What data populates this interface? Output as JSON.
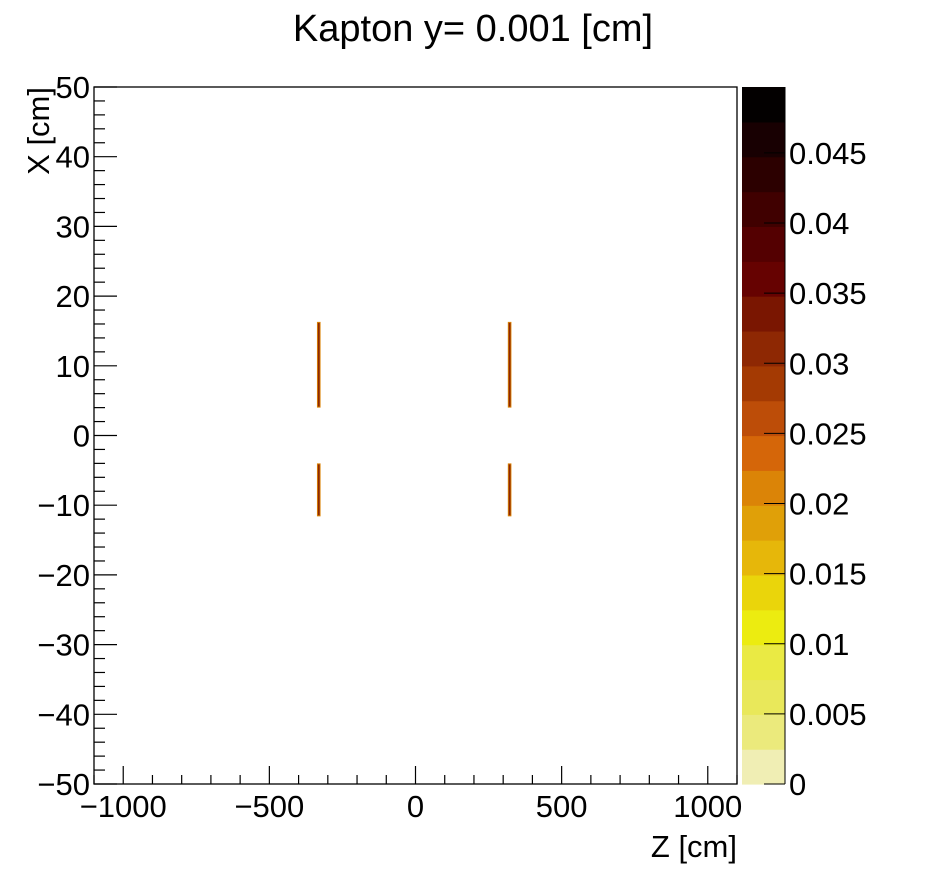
{
  "chart_data": {
    "type": "heatmap",
    "title": "Kapton y=  0.001 [cm]",
    "xlabel": "Z [cm]",
    "ylabel": "X [cm]",
    "xlim": [
      -1100,
      1100
    ],
    "ylim": [
      -50,
      50
    ],
    "x_ticks": [
      -1000,
      -500,
      0,
      500,
      1000
    ],
    "x_tick_labels": [
      "−1000",
      "−500",
      "0",
      "500",
      "1000"
    ],
    "y_ticks": [
      -50,
      -40,
      -30,
      -20,
      -10,
      0,
      10,
      20,
      30,
      40,
      50
    ],
    "y_tick_labels": [
      "−50",
      "−40",
      "−30",
      "−20",
      "−10",
      "0",
      "10",
      "20",
      "30",
      "40",
      "50"
    ],
    "grid": false,
    "colorbar": {
      "min": 0,
      "max": 0.0497,
      "ticks": [
        0,
        0.005,
        0.01,
        0.015,
        0.02,
        0.025,
        0.03,
        0.035,
        0.04,
        0.045
      ],
      "tick_labels": [
        "0",
        "0.005",
        "0.01",
        "0.015",
        "0.02",
        "0.025",
        "0.03",
        "0.035",
        "0.04",
        "0.045"
      ],
      "colors": [
        "#f0eeb4",
        "#ebea7c",
        "#e9e85a",
        "#eaea44",
        "#ecec10",
        "#ead50b",
        "#e6b70a",
        "#e0a008",
        "#db8407",
        "#d56609",
        "#bd4d08",
        "#a43a03",
        "#8e2803",
        "#7a1601",
        "#660201",
        "#540001",
        "#400000",
        "#2c0000",
        "#180002",
        "#030000"
      ]
    },
    "segments": [
      {
        "z": -331,
        "x_min": 4.0,
        "x_max": 16.3,
        "value": 0.032,
        "edge_value": 0.022
      },
      {
        "z": 322,
        "x_min": 4.0,
        "x_max": 16.3,
        "value": 0.032,
        "edge_value": 0.022
      },
      {
        "z": -331,
        "x_min": -11.6,
        "x_max": -4.0,
        "value": 0.032,
        "edge_value": 0.022
      },
      {
        "z": 322,
        "x_min": -11.6,
        "x_max": -4.0,
        "value": 0.032,
        "edge_value": 0.022
      }
    ]
  }
}
